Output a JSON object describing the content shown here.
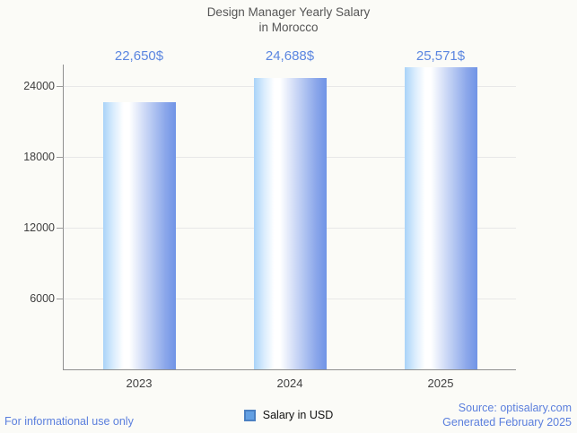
{
  "chart_data": {
    "type": "bar",
    "title": "Design Manager Yearly Salary in Morocco",
    "title_lines": [
      "Design Manager Yearly Salary",
      "in Morocco"
    ],
    "categories": [
      "2023",
      "2024",
      "2025"
    ],
    "series": [
      {
        "name": "Salary in USD",
        "values": [
          22650,
          24688,
          25571
        ]
      }
    ],
    "value_labels": [
      "22,650$",
      "24,688$",
      "25,571$"
    ],
    "xlabel": "",
    "ylabel": "",
    "yticks": [
      6000,
      12000,
      18000,
      24000
    ],
    "ylim": [
      0,
      25800
    ],
    "grid": true,
    "legend_position": "bottom",
    "legend_label": "Salary in USD",
    "colors": {
      "bar_edge_light": "#a9d3f8",
      "bar_center": "#ffffff",
      "bar_edge_dark": "#7094e6",
      "annotation_text": "#5b86e0",
      "legend_swatch_fill": "#63a0e3",
      "legend_swatch_border": "#4b80c2",
      "title_text": "#555555",
      "axis_text": "#3f3f3f",
      "gridline": "#e8e8e8",
      "axis_line": "#8f8f8f",
      "background": "#fbfbf7",
      "footer_text": "#5b7fdd"
    }
  },
  "footer": {
    "disclaimer": "For informational use only",
    "source": "Source: optisalary.com",
    "generated": "Generated February 2025"
  }
}
